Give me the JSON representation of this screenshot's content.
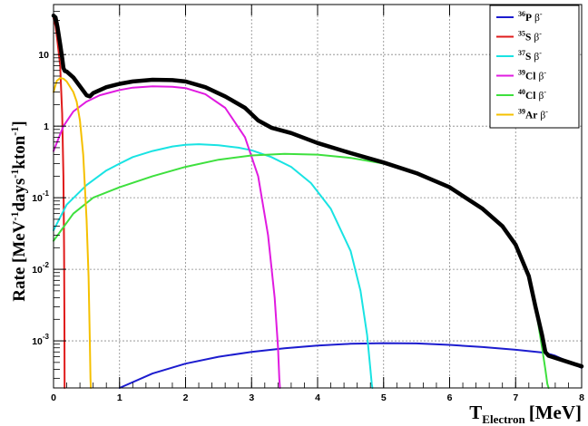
{
  "chart_data": {
    "type": "line",
    "xlabel": "T",
    "xlabel_sub": "Electron",
    "xlabel_unit": "[MeV]",
    "ylabel": "Rate [MeV-1days-1kton-1]",
    "ylabel_parts": [
      "Rate [MeV",
      "-1",
      "days",
      "-1",
      "kton",
      "-1",
      "]"
    ],
    "xlim": [
      0,
      8
    ],
    "ylim": [
      0.00022,
      50
    ],
    "yscale": "log",
    "grid": true,
    "legend_position": "top-right",
    "x_ticks": [
      "0",
      "1",
      "2",
      "3",
      "4",
      "5",
      "6",
      "7",
      "8"
    ],
    "y_ticks": [
      {
        "value": 0.001,
        "base": "10",
        "exp": "-3"
      },
      {
        "value": 0.01,
        "base": "10",
        "exp": "-2"
      },
      {
        "value": 0.1,
        "base": "10",
        "exp": "-1"
      },
      {
        "value": 1,
        "base": "1",
        "exp": ""
      },
      {
        "value": 10,
        "base": "10",
        "exp": ""
      }
    ],
    "series": [
      {
        "name": "36P β-",
        "mass": "36",
        "element": "P",
        "color": "#1c1ccf",
        "width": 2,
        "x": [
          1.0,
          1.5,
          2.0,
          2.5,
          3.0,
          3.5,
          4.0,
          4.5,
          5.0,
          5.5,
          6.0,
          6.5,
          7.0,
          7.45,
          7.6,
          8.0
        ],
        "y": [
          0.00022,
          0.00035,
          0.00048,
          0.0006,
          0.0007,
          0.00079,
          0.00086,
          0.00091,
          0.00093,
          0.00092,
          0.00088,
          0.00082,
          0.00075,
          0.00068,
          0.00062,
          0.00042
        ]
      },
      {
        "name": "35S β-",
        "mass": "35",
        "element": "S",
        "color": "#e01b1b",
        "width": 2,
        "x": [
          0.0,
          0.03,
          0.06,
          0.1,
          0.13,
          0.15,
          0.16,
          0.165,
          0.168
        ],
        "y": [
          32,
          25,
          15,
          7,
          1.5,
          0.2,
          0.02,
          0.002,
          0.00022
        ]
      },
      {
        "name": "37S β-",
        "mass": "37",
        "element": "S",
        "color": "#19e3e3",
        "width": 2,
        "x": [
          0.0,
          0.2,
          0.5,
          0.8,
          1.0,
          1.2,
          1.5,
          1.8,
          2.0,
          2.2,
          2.5,
          2.8,
          3.0,
          3.3,
          3.6,
          3.9,
          4.2,
          4.5,
          4.65,
          4.75,
          4.8,
          4.82,
          4.83
        ],
        "y": [
          0.035,
          0.08,
          0.15,
          0.24,
          0.3,
          0.37,
          0.45,
          0.52,
          0.55,
          0.56,
          0.54,
          0.5,
          0.46,
          0.37,
          0.27,
          0.16,
          0.07,
          0.018,
          0.005,
          0.0012,
          0.0004,
          0.00025,
          0.00022
        ]
      },
      {
        "name": "39Cl β-",
        "mass": "39",
        "element": "Cl",
        "color": "#e01be0",
        "width": 2,
        "x": [
          0.0,
          0.15,
          0.3,
          0.5,
          0.7,
          1.0,
          1.2,
          1.5,
          1.8,
          2.0,
          2.3,
          2.6,
          2.9,
          3.1,
          3.25,
          3.35,
          3.4,
          3.42,
          3.43
        ],
        "y": [
          0.45,
          1.0,
          1.6,
          2.2,
          2.7,
          3.2,
          3.45,
          3.6,
          3.55,
          3.4,
          2.8,
          1.8,
          0.7,
          0.2,
          0.03,
          0.004,
          0.0008,
          0.0003,
          0.00022
        ]
      },
      {
        "name": "40Cl β-",
        "mass": "40",
        "element": "Cl",
        "color": "#3ee03e",
        "width": 2,
        "x": [
          0.0,
          0.3,
          0.6,
          1.0,
          1.5,
          2.0,
          2.5,
          3.0,
          3.5,
          4.0,
          4.5,
          5.0,
          5.5,
          6.0,
          6.5,
          6.8,
          7.0,
          7.2,
          7.3,
          7.4,
          7.45,
          7.48,
          7.5
        ],
        "y": [
          0.025,
          0.06,
          0.1,
          0.14,
          0.2,
          0.27,
          0.34,
          0.39,
          0.41,
          0.4,
          0.36,
          0.3,
          0.22,
          0.14,
          0.07,
          0.04,
          0.022,
          0.008,
          0.003,
          0.0008,
          0.0004,
          0.00025,
          0.00022
        ]
      },
      {
        "name": "39Ar β-",
        "mass": "39",
        "element": "Ar",
        "color": "#f5c000",
        "width": 2,
        "x": [
          0.0,
          0.05,
          0.1,
          0.15,
          0.2,
          0.3,
          0.35,
          0.4,
          0.45,
          0.5,
          0.53,
          0.55,
          0.56,
          0.565
        ],
        "y": [
          3.0,
          4.3,
          4.7,
          4.6,
          4.2,
          3.0,
          2.2,
          1.2,
          0.4,
          0.05,
          0.008,
          0.001,
          0.0003,
          0.00022
        ]
      },
      {
        "name": "",
        "mass": "",
        "element": "",
        "color": "#000000",
        "width": 4.5,
        "x": [
          0.0,
          0.03,
          0.06,
          0.1,
          0.13,
          0.15,
          0.17,
          0.2,
          0.3,
          0.4,
          0.5,
          0.55,
          0.6,
          0.8,
          1.0,
          1.2,
          1.5,
          1.8,
          2.0,
          2.3,
          2.6,
          2.9,
          3.1,
          3.3,
          3.6,
          4.0,
          4.5,
          5.0,
          5.5,
          6.0,
          6.5,
          6.8,
          7.0,
          7.2,
          7.3,
          7.4,
          7.45,
          7.5,
          7.6,
          8.0
        ],
        "y": [
          35,
          33,
          24,
          14,
          9,
          6.5,
          5.9,
          5.8,
          4.8,
          3.6,
          2.7,
          2.6,
          2.9,
          3.5,
          3.9,
          4.2,
          4.45,
          4.4,
          4.2,
          3.5,
          2.6,
          1.8,
          1.2,
          0.95,
          0.8,
          0.58,
          0.42,
          0.31,
          0.22,
          0.14,
          0.07,
          0.04,
          0.022,
          0.008,
          0.003,
          0.0012,
          0.0007,
          0.00062,
          0.00058,
          0.00044
        ]
      }
    ]
  }
}
